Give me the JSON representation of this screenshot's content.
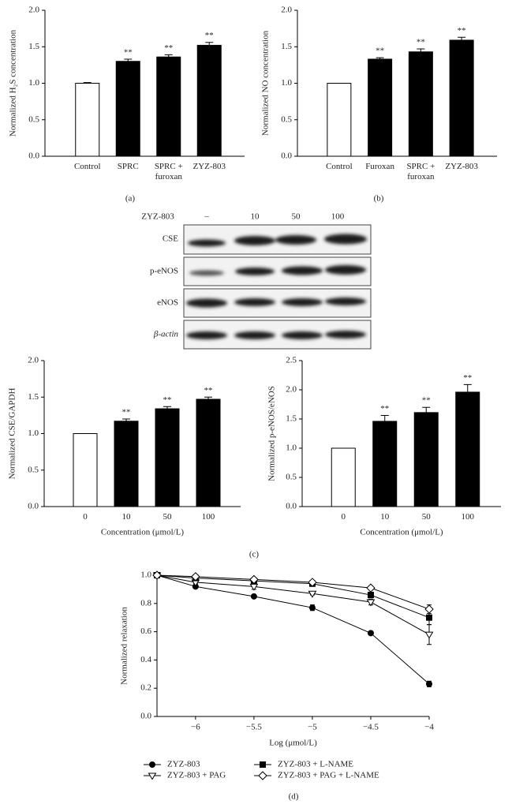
{
  "chart_data": [
    {
      "type": "bar",
      "panel": "(a)",
      "ylabel": "Normalized H₂S concentration",
      "categories": [
        "Control",
        "SPRC",
        "SPRC + furoxan",
        "ZYZ-803"
      ],
      "values": [
        1.0,
        1.3,
        1.36,
        1.52
      ],
      "errors": [
        0.01,
        0.03,
        0.03,
        0.04
      ],
      "colors": [
        "#ffffff",
        "#000000",
        "#000000",
        "#000000"
      ],
      "annotations": [
        {
          "index": 1,
          "text": "**"
        },
        {
          "index": 2,
          "text": "**"
        },
        {
          "index": 3,
          "text": "**"
        }
      ],
      "ylim": [
        0,
        2
      ],
      "yticks": [
        {
          "value": 0,
          "label": "0.0"
        },
        {
          "value": 0.5,
          "label": "0.5"
        },
        {
          "value": 1,
          "label": "1.0"
        },
        {
          "value": 1.5,
          "label": "1.5"
        },
        {
          "value": 2,
          "label": "2.0"
        }
      ]
    },
    {
      "type": "bar",
      "panel": "(b)",
      "ylabel": "Normalized NO concentration",
      "categories": [
        "Control",
        "Furoxan",
        "SPRC + furoxan",
        "ZYZ-803"
      ],
      "values": [
        1.0,
        1.33,
        1.43,
        1.59
      ],
      "errors": [
        0.0,
        0.02,
        0.04,
        0.04
      ],
      "colors": [
        "#ffffff",
        "#000000",
        "#000000",
        "#000000"
      ],
      "annotations": [
        {
          "index": 1,
          "text": "**"
        },
        {
          "index": 2,
          "text": "**"
        },
        {
          "index": 3,
          "text": "**"
        }
      ],
      "ylim": [
        0,
        2
      ],
      "yticks": [
        {
          "value": 0,
          "label": "0.0"
        },
        {
          "value": 0.5,
          "label": "0.5"
        },
        {
          "value": 1,
          "label": "1.0"
        },
        {
          "value": 1.5,
          "label": "1.5"
        },
        {
          "value": 2,
          "label": "2.0"
        }
      ]
    },
    {
      "type": "bar",
      "panel": "(c)",
      "ylabel": "Normalized CSE/GAPDH",
      "xlabel": "Concentration (μmol/L)",
      "categories": [
        "0",
        "10",
        "50",
        "100"
      ],
      "values": [
        1.0,
        1.17,
        1.34,
        1.47
      ],
      "errors": [
        0.0,
        0.03,
        0.03,
        0.03
      ],
      "colors": [
        "#ffffff",
        "#000000",
        "#000000",
        "#000000"
      ],
      "annotations": [
        {
          "index": 1,
          "text": "**"
        },
        {
          "index": 2,
          "text": "**"
        },
        {
          "index": 3,
          "text": "**"
        }
      ],
      "ylim": [
        0,
        2
      ],
      "yticks": [
        {
          "value": 0,
          "label": "0.0"
        },
        {
          "value": 0.5,
          "label": "0.5"
        },
        {
          "value": 1,
          "label": "1.0"
        },
        {
          "value": 1.5,
          "label": "1.5"
        },
        {
          "value": 2,
          "label": "2.0"
        }
      ]
    },
    {
      "type": "bar",
      "ylabel": "Normalized p-eNOS/eNOS",
      "xlabel": "Concentration (μmol/L)",
      "categories": [
        "0",
        "10",
        "50",
        "100"
      ],
      "values": [
        1.0,
        1.46,
        1.61,
        1.96
      ],
      "errors": [
        0.0,
        0.1,
        0.09,
        0.13
      ],
      "colors": [
        "#ffffff",
        "#000000",
        "#000000",
        "#000000"
      ],
      "annotations": [
        {
          "index": 1,
          "text": "**"
        },
        {
          "index": 2,
          "text": "**"
        },
        {
          "index": 3,
          "text": "**"
        }
      ],
      "ylim": [
        0,
        2.5
      ],
      "yticks": [
        {
          "value": 0,
          "label": "0.0"
        },
        {
          "value": 0.5,
          "label": "0.5"
        },
        {
          "value": 1,
          "label": "1.0"
        },
        {
          "value": 1.5,
          "label": "1.5"
        },
        {
          "value": 2,
          "label": "2.0"
        },
        {
          "value": 2.5,
          "label": "2.5"
        }
      ]
    },
    {
      "type": "line",
      "panel": "(d)",
      "ylabel": "Normalized relaxation",
      "xlabel": "Log (μmol/L)",
      "x": [
        -6.33,
        -6,
        -5.5,
        -5,
        -4.5,
        -4
      ],
      "series": [
        {
          "name": "ZYZ-803",
          "marker": "circle",
          "filled": true,
          "values": [
            1.0,
            0.92,
            0.85,
            0.77,
            0.59,
            0.23
          ],
          "errors": [
            0.01,
            0.01,
            0.01,
            0.02,
            0.01,
            0.02
          ]
        },
        {
          "name": "ZYZ-803 + PAG",
          "marker": "triangle-down",
          "filled": false,
          "values": [
            1.0,
            0.95,
            0.92,
            0.87,
            0.81,
            0.58
          ],
          "errors": [
            0.01,
            0.01,
            0.02,
            0.01,
            0.02,
            0.07
          ]
        },
        {
          "name": "ZYZ-803 + L-NAME",
          "marker": "square",
          "filled": true,
          "values": [
            1.0,
            0.98,
            0.96,
            0.94,
            0.86,
            0.7
          ],
          "errors": [
            0.01,
            0.01,
            0.01,
            0.01,
            0.02,
            0.05
          ]
        },
        {
          "name": "ZYZ-803 + PAG + L-NAME",
          "marker": "diamond",
          "filled": false,
          "values": [
            1.0,
            0.99,
            0.97,
            0.95,
            0.91,
            0.76
          ],
          "errors": [
            0.01,
            0.01,
            0.01,
            0.01,
            0.01,
            0.03
          ]
        }
      ],
      "xlim": [
        -6.33,
        -4
      ],
      "xticks": [
        {
          "value": -6,
          "label": "−6"
        },
        {
          "value": -5.5,
          "label": "−5.5"
        },
        {
          "value": -5,
          "label": "−5"
        },
        {
          "value": -4.5,
          "label": "−4.5"
        },
        {
          "value": -4,
          "label": "−4"
        }
      ],
      "ylim": [
        0,
        1
      ],
      "yticks": [
        {
          "value": 0,
          "label": "0.0"
        },
        {
          "value": 0.2,
          "label": "0.2"
        },
        {
          "value": 0.4,
          "label": "0.4"
        },
        {
          "value": 0.6,
          "label": "0.6"
        },
        {
          "value": 0.8,
          "label": "0.8"
        },
        {
          "value": 1,
          "label": "1.0"
        }
      ]
    }
  ],
  "blot": {
    "treatment_label": "ZYZ-803",
    "lanes": [
      "–",
      "10",
      "50",
      "100"
    ],
    "rows": [
      "CSE",
      "p-eNOS",
      "eNOS",
      "β-actin"
    ]
  }
}
